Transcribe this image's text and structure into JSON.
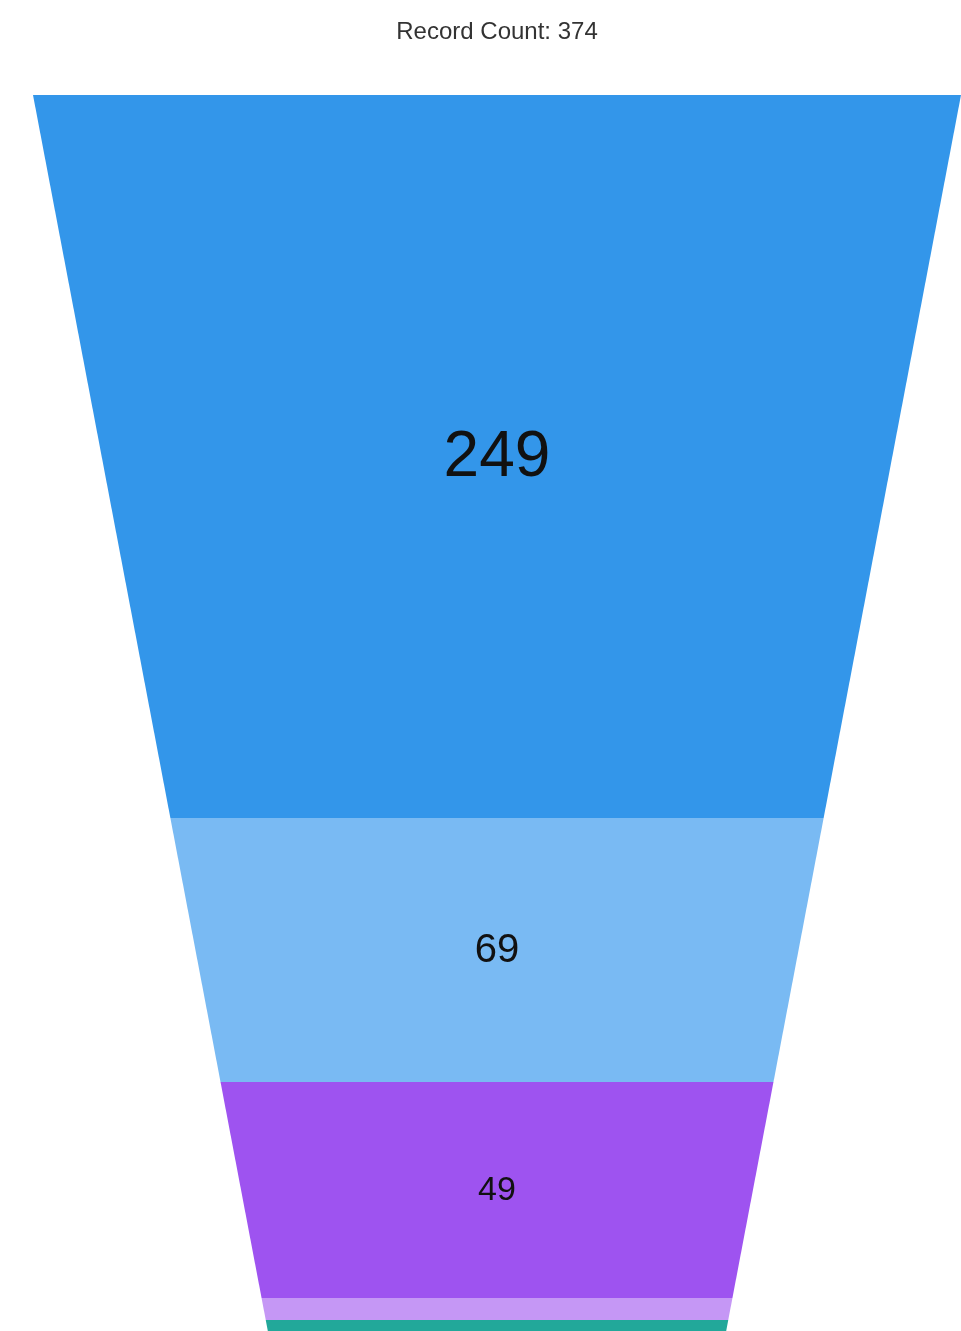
{
  "chart_data": {
    "type": "other",
    "title": "Record Count: 374",
    "categories": [
      null,
      null,
      null,
      null,
      null
    ],
    "values": [
      249,
      69,
      49,
      null,
      null
    ],
    "colors": [
      "#3396ea",
      "#79baf3",
      "#9e53f0",
      "#c597f5",
      "#22a89a"
    ],
    "data_labels": true
  }
}
